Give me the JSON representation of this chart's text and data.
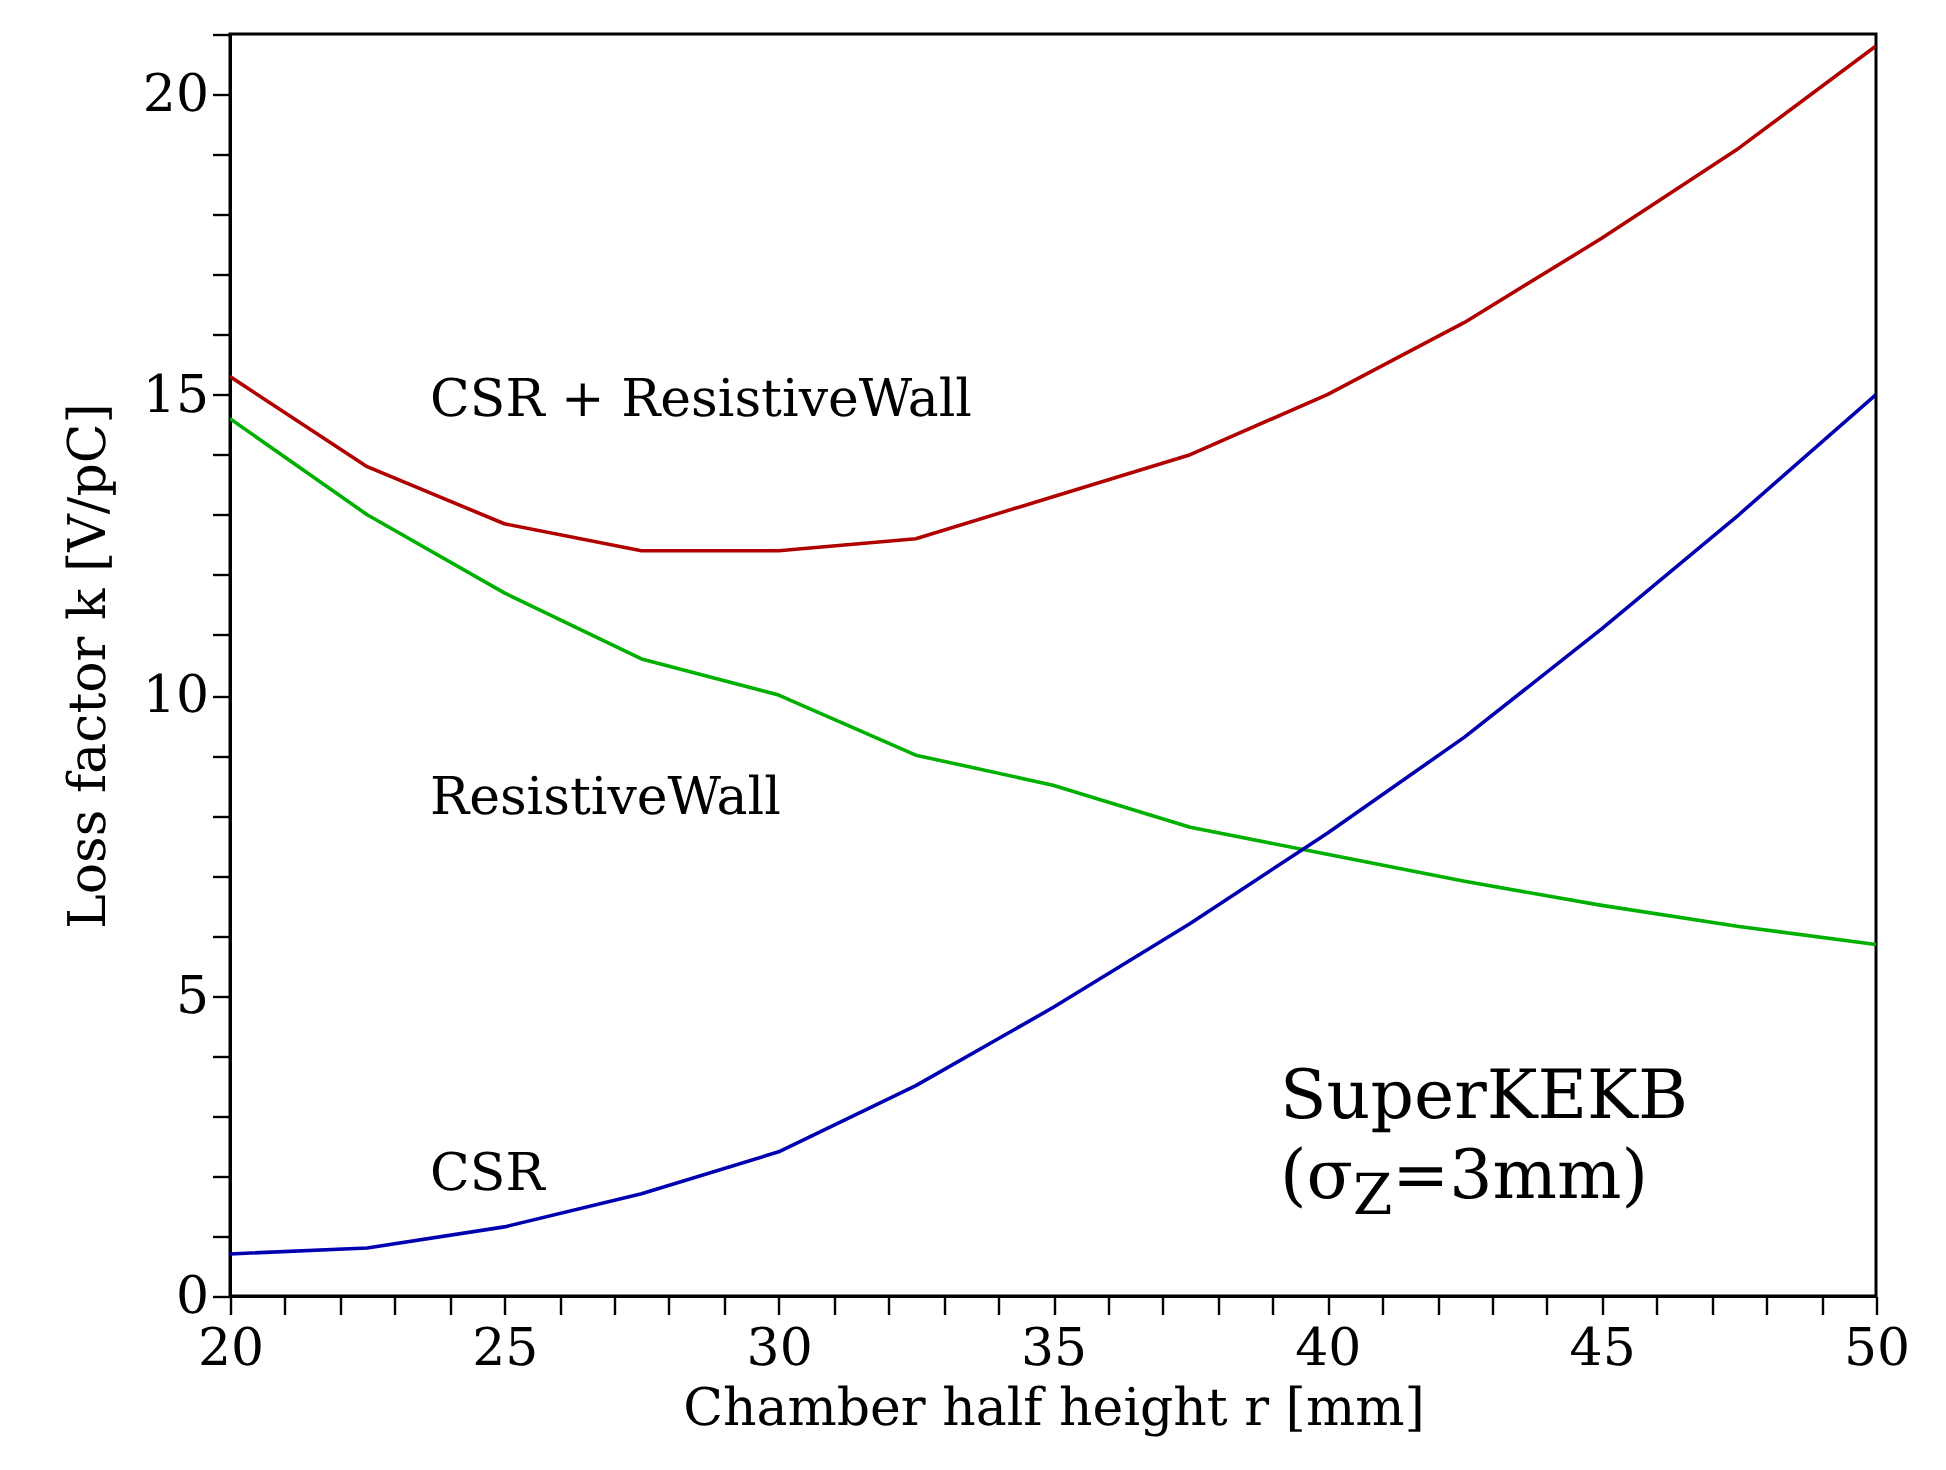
{
  "chart_data": {
    "type": "line",
    "xlabel": "Chamber half height  r [mm]",
    "ylabel": "Loss factor  k [V/pC]",
    "x": [
      20,
      22.5,
      25,
      27.5,
      30,
      32.5,
      35,
      37.5,
      40,
      42.5,
      45,
      47.5,
      50
    ],
    "series": [
      {
        "name": "CSR + ResistiveWall",
        "color": "#b00000",
        "values": [
          15.3,
          13.8,
          12.85,
          12.4,
          12.4,
          12.6,
          13.3,
          14.0,
          15.0,
          16.2,
          17.6,
          19.1,
          20.8
        ]
      },
      {
        "name": "ResistiveWall",
        "color": "#00b000",
        "values": [
          14.6,
          13.0,
          11.7,
          10.6,
          10.0,
          9.0,
          8.5,
          7.8,
          7.35,
          6.9,
          6.5,
          6.15,
          5.85
        ]
      },
      {
        "name": "CSR",
        "color": "#0000b0",
        "values": [
          0.7,
          0.8,
          1.15,
          1.7,
          2.4,
          3.5,
          4.8,
          6.2,
          7.7,
          9.3,
          11.1,
          13.0,
          15.0
        ]
      }
    ],
    "xlim": [
      20,
      50
    ],
    "ylim": [
      0,
      21
    ],
    "xticks": [
      20,
      {
        "value": 21,
        "label": null
      },
      {
        "value": 22,
        "label": null
      },
      {
        "value": 23,
        "label": null
      },
      {
        "value": 24,
        "label": null
      },
      25,
      {
        "value": 26,
        "label": null
      },
      {
        "value": 27,
        "label": null
      },
      {
        "value": 28,
        "label": null
      },
      {
        "value": 29,
        "label": null
      },
      30,
      {
        "value": 31,
        "label": null
      },
      {
        "value": 32,
        "label": null
      },
      {
        "value": 33,
        "label": null
      },
      {
        "value": 34,
        "label": null
      },
      35,
      {
        "value": 36,
        "label": null
      },
      {
        "value": 37,
        "label": null
      },
      {
        "value": 38,
        "label": null
      },
      {
        "value": 39,
        "label": null
      },
      40,
      {
        "value": 41,
        "label": null
      },
      {
        "value": 42,
        "label": null
      },
      {
        "value": 43,
        "label": null
      },
      {
        "value": 44,
        "label": null
      },
      45,
      {
        "value": 46,
        "label": null
      },
      {
        "value": 47,
        "label": null
      },
      {
        "value": 48,
        "label": null
      },
      {
        "value": 49,
        "label": null
      },
      50
    ],
    "yticks": [
      0,
      {
        "value": 1,
        "label": null
      },
      {
        "value": 2,
        "label": null
      },
      {
        "value": 3,
        "label": null
      },
      {
        "value": 4,
        "label": null
      },
      5,
      {
        "value": 6,
        "label": null
      },
      {
        "value": 7,
        "label": null
      },
      {
        "value": 8,
        "label": null
      },
      {
        "value": 9,
        "label": null
      },
      10,
      {
        "value": 11,
        "label": null
      },
      {
        "value": 12,
        "label": null
      },
      {
        "value": 13,
        "label": null
      },
      {
        "value": 14,
        "label": null
      },
      15,
      {
        "value": 16,
        "label": null
      },
      {
        "value": 17,
        "label": null
      },
      {
        "value": 18,
        "label": null
      },
      {
        "value": 19,
        "label": null
      },
      20,
      {
        "value": 21,
        "label": null
      }
    ],
    "annotations": [
      "SuperKEKB",
      "(σ$_{Z}$=3mm)"
    ],
    "grid": false,
    "marker": "none",
    "line_style": "solid"
  }
}
